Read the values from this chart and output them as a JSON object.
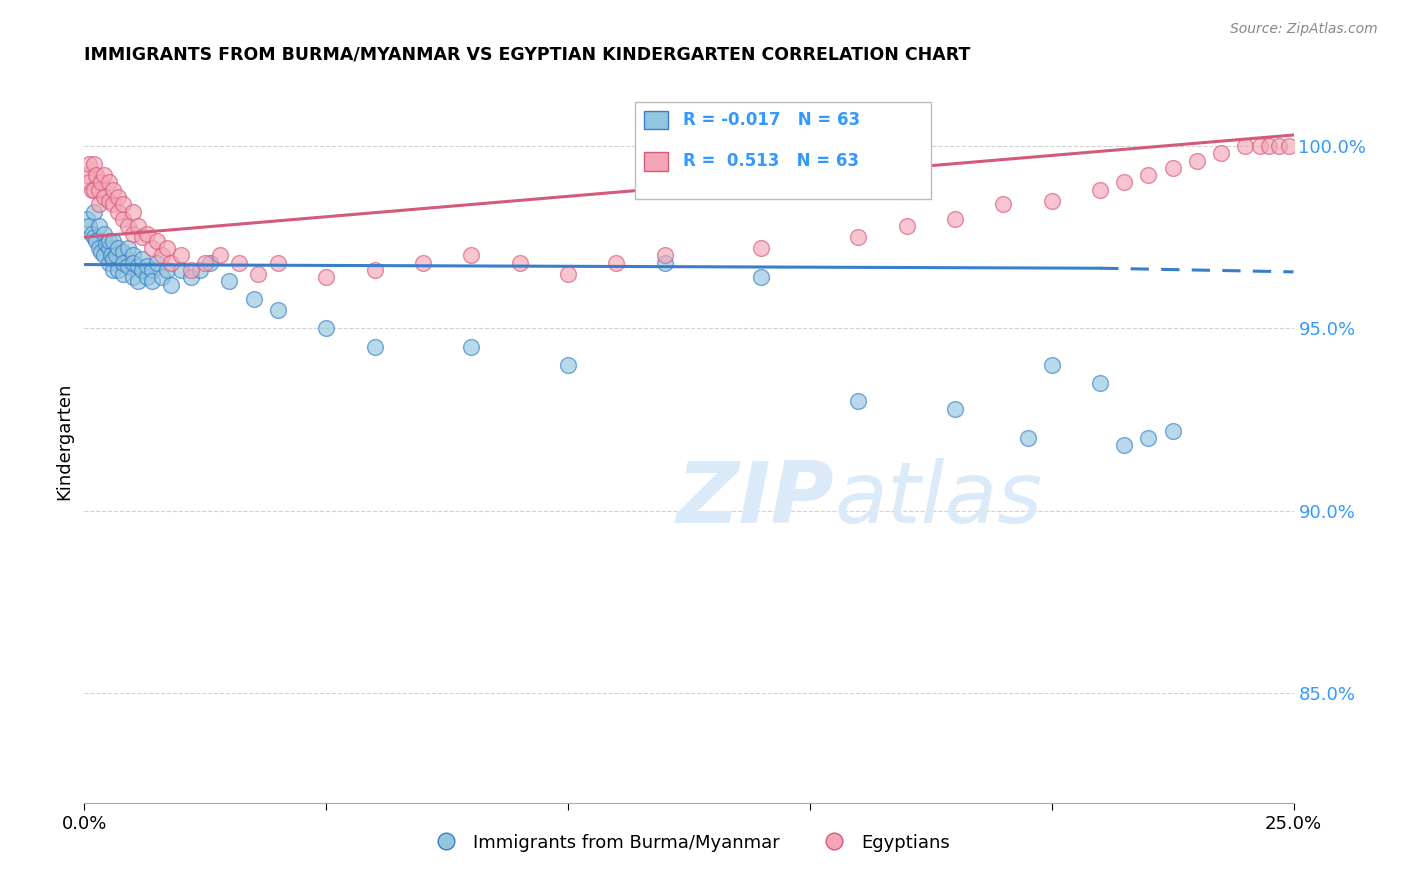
{
  "title": "IMMIGRANTS FROM BURMA/MYANMAR VS EGYPTIAN KINDERGARTEN CORRELATION CHART",
  "source": "Source: ZipAtlas.com",
  "ylabel": "Kindergarten",
  "ytick_labels": [
    "85.0%",
    "90.0%",
    "95.0%",
    "100.0%"
  ],
  "ytick_values": [
    0.85,
    0.9,
    0.95,
    1.0
  ],
  "legend_label1": "Immigrants from Burma/Myanmar",
  "legend_label2": "Egyptians",
  "legend_r1": "R = -0.017",
  "legend_n1": "N = 63",
  "legend_r2": "R =  0.513",
  "legend_n2": "N = 63",
  "color_blue": "#92c5de",
  "color_pink": "#f4a6b8",
  "color_line_blue": "#3a7dc9",
  "color_line_pink": "#d45a7a",
  "color_ytick": "#3399ff",
  "watermark_color": "#daeaf8",
  "xlim": [
    0.0,
    0.25
  ],
  "ylim": [
    0.82,
    1.018
  ],
  "blue_x": [
    0.0005,
    0.001,
    0.0015,
    0.002,
    0.002,
    0.0025,
    0.003,
    0.003,
    0.0035,
    0.004,
    0.004,
    0.0045,
    0.005,
    0.005,
    0.005,
    0.0055,
    0.006,
    0.006,
    0.006,
    0.0065,
    0.007,
    0.007,
    0.008,
    0.008,
    0.008,
    0.009,
    0.009,
    0.01,
    0.01,
    0.01,
    0.011,
    0.011,
    0.012,
    0.012,
    0.013,
    0.013,
    0.014,
    0.014,
    0.015,
    0.016,
    0.017,
    0.018,
    0.02,
    0.022,
    0.024,
    0.026,
    0.03,
    0.035,
    0.04,
    0.05,
    0.06,
    0.08,
    0.1,
    0.12,
    0.14,
    0.16,
    0.18,
    0.195,
    0.2,
    0.21,
    0.215,
    0.22,
    0.225
  ],
  "blue_y": [
    0.98,
    0.978,
    0.976,
    0.975,
    0.982,
    0.974,
    0.972,
    0.978,
    0.971,
    0.97,
    0.976,
    0.973,
    0.972,
    0.968,
    0.974,
    0.97,
    0.969,
    0.974,
    0.966,
    0.97,
    0.972,
    0.966,
    0.971,
    0.965,
    0.968,
    0.972,
    0.967,
    0.97,
    0.964,
    0.968,
    0.963,
    0.967,
    0.966,
    0.969,
    0.964,
    0.967,
    0.966,
    0.963,
    0.968,
    0.964,
    0.966,
    0.962,
    0.966,
    0.964,
    0.966,
    0.968,
    0.963,
    0.958,
    0.955,
    0.95,
    0.945,
    0.945,
    0.94,
    0.968,
    0.964,
    0.93,
    0.928,
    0.92,
    0.94,
    0.935,
    0.918,
    0.92,
    0.922
  ],
  "pink_x": [
    0.0005,
    0.001,
    0.001,
    0.0015,
    0.002,
    0.002,
    0.0025,
    0.003,
    0.003,
    0.0035,
    0.004,
    0.004,
    0.005,
    0.005,
    0.006,
    0.006,
    0.007,
    0.007,
    0.008,
    0.008,
    0.009,
    0.01,
    0.01,
    0.011,
    0.012,
    0.013,
    0.014,
    0.015,
    0.016,
    0.017,
    0.018,
    0.02,
    0.022,
    0.025,
    0.028,
    0.032,
    0.036,
    0.04,
    0.05,
    0.06,
    0.07,
    0.08,
    0.09,
    0.1,
    0.11,
    0.12,
    0.14,
    0.16,
    0.17,
    0.18,
    0.19,
    0.2,
    0.21,
    0.215,
    0.22,
    0.225,
    0.23,
    0.235,
    0.24,
    0.243,
    0.245,
    0.247,
    0.249
  ],
  "pink_y": [
    0.992,
    0.995,
    0.99,
    0.988,
    0.995,
    0.988,
    0.992,
    0.988,
    0.984,
    0.99,
    0.986,
    0.992,
    0.985,
    0.99,
    0.984,
    0.988,
    0.982,
    0.986,
    0.98,
    0.984,
    0.978,
    0.982,
    0.976,
    0.978,
    0.975,
    0.976,
    0.972,
    0.974,
    0.97,
    0.972,
    0.968,
    0.97,
    0.966,
    0.968,
    0.97,
    0.968,
    0.965,
    0.968,
    0.964,
    0.966,
    0.968,
    0.97,
    0.968,
    0.965,
    0.968,
    0.97,
    0.972,
    0.975,
    0.978,
    0.98,
    0.984,
    0.985,
    0.988,
    0.99,
    0.992,
    0.994,
    0.996,
    0.998,
    1.0,
    1.0,
    1.0,
    1.0,
    1.0
  ],
  "grid_color": "#cccccc"
}
